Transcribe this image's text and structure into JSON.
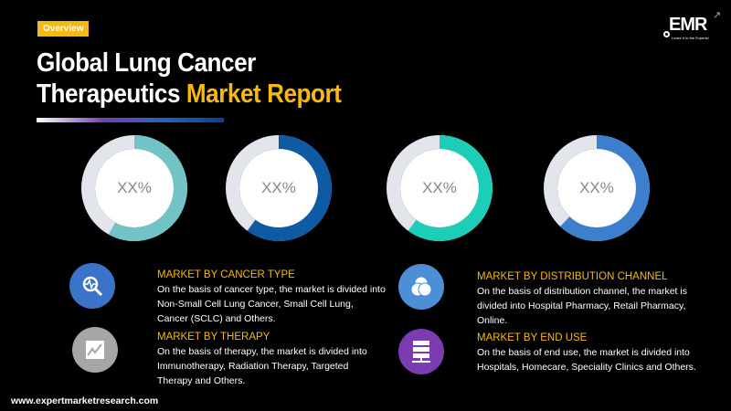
{
  "badge": "Overview",
  "title": {
    "line1": "Global Lung Cancer",
    "line2_white": "Therapeutics ",
    "line2_highlight": "Market Report"
  },
  "logo": {
    "text": "EMR",
    "tagline": "Leave it to the Experts!"
  },
  "donuts": [
    {
      "label": "XX%",
      "fraction": 0.58,
      "color": "#72c3c6"
    },
    {
      "label": "XX%",
      "fraction": 0.6,
      "color": "#0e5aa3"
    },
    {
      "label": "XX%",
      "fraction": 0.6,
      "color": "#1ccdb8"
    },
    {
      "label": "XX%",
      "fraction": 0.62,
      "color": "#3c7fcc"
    }
  ],
  "track_color": "#e2e6ec",
  "sections": [
    {
      "heading": "MARKET BY CANCER TYPE",
      "text": "On the basis of cancer type, the market is divided into Non-Small Cell Lung Cancer, Small Cell Lung, Cancer (SCLC) and Others.",
      "icon": "magnifier-pulse-icon",
      "color": "#3a73c8"
    },
    {
      "heading": "MARKET BY THERAPY",
      "text": "On the basis of therapy, the market is divided into Immunotherapy, Radiation Therapy, Targeted Therapy and Others.",
      "icon": "chart-icon",
      "color": "#a6a6a6"
    },
    {
      "heading": "MARKET BY DISTRIBUTION CHANNEL",
      "text": "On the basis of distribution channel, the market is divided into Hospital Pharmacy, Retail Pharmacy, Online.",
      "icon": "venn-icon",
      "color": "#4d8fd6"
    },
    {
      "heading": "MARKET BY END USE",
      "text": "On the basis of end use, the market is divided into Hospitals, Homecare, Speciality Clinics and Others.",
      "icon": "server-icon",
      "color": "#7a3cb0"
    }
  ],
  "footer": "www.expertmarketresearch.com"
}
